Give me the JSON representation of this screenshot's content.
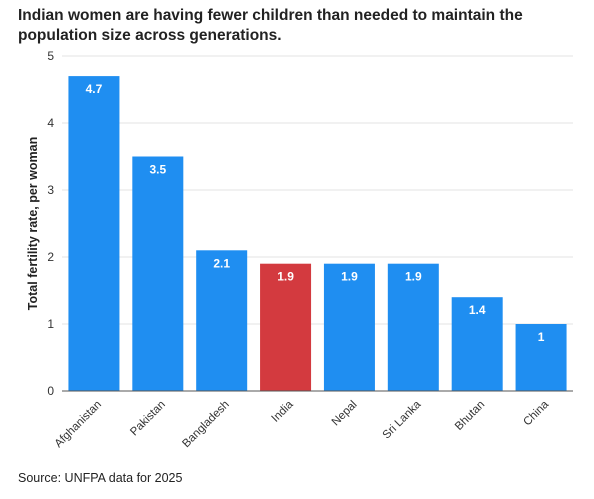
{
  "chart_data": {
    "type": "bar",
    "title": "Indian women are having fewer children than needed to maintain the population size across generations.",
    "ylabel": "Total fertility rate, per woman",
    "xlabel": "",
    "categories": [
      "Afghanistan",
      "Pakistan",
      "Bangladesh",
      "India",
      "Nepal",
      "Sri Lanka",
      "Bhutan",
      "China"
    ],
    "values": [
      4.7,
      3.5,
      2.1,
      1.9,
      1.9,
      1.9,
      1.4,
      1
    ],
    "value_labels": [
      "4.7",
      "3.5",
      "2.1",
      "1.9",
      "1.9",
      "1.9",
      "1.4",
      "1"
    ],
    "highlight_category": "India",
    "ylim": [
      0,
      5
    ],
    "yticks": [
      0,
      1,
      2,
      3,
      4,
      5
    ],
    "grid": true,
    "colors": {
      "bar": "#1f8ef1",
      "highlight": "#d33a3f",
      "grid": "#e3e3e3"
    },
    "source": "Source: UNFPA data for 2025"
  }
}
